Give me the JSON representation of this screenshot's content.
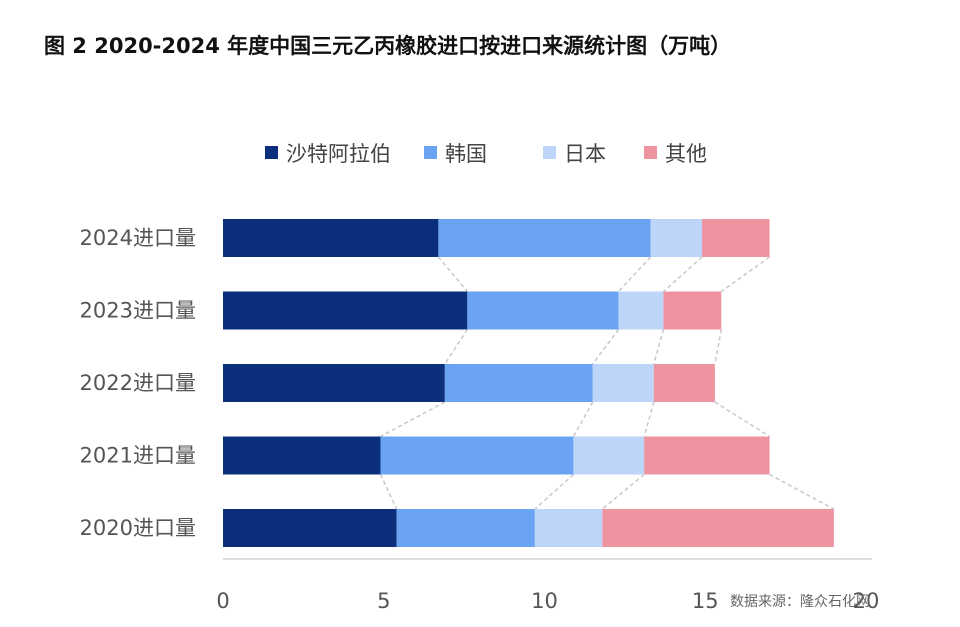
{
  "chart_data": {
    "type": "bar",
    "orientation": "horizontal",
    "stacked": true,
    "title": "图 2 2020-2024 年度中国三元乙丙橡胶进口按进口来源统计图（万吨）",
    "categories": [
      "2024进口量",
      "2023进口量",
      "2022进口量",
      "2021进口量",
      "2020进口量"
    ],
    "series": [
      {
        "name": "沙特阿拉伯",
        "color": "#0b2f7a",
        "values": [
          6.7,
          7.6,
          6.9,
          4.9,
          5.4
        ]
      },
      {
        "name": "韩国",
        "color": "#6aa3f2",
        "values": [
          6.6,
          4.7,
          4.6,
          6.0,
          4.3
        ]
      },
      {
        "name": "日本",
        "color": "#bcd5f8",
        "values": [
          1.6,
          1.4,
          1.9,
          2.2,
          2.1
        ]
      },
      {
        "name": "其他",
        "color": "#ee94a0",
        "values": [
          2.1,
          1.8,
          1.9,
          3.9,
          7.2
        ]
      }
    ],
    "x_ticks": [
      "0",
      "5",
      "10",
      "15",
      "20"
    ],
    "xlim": [
      0,
      20
    ],
    "legend_position": "top",
    "grid": false,
    "connector_lines": true
  },
  "source": "数据来源：隆众石化网"
}
